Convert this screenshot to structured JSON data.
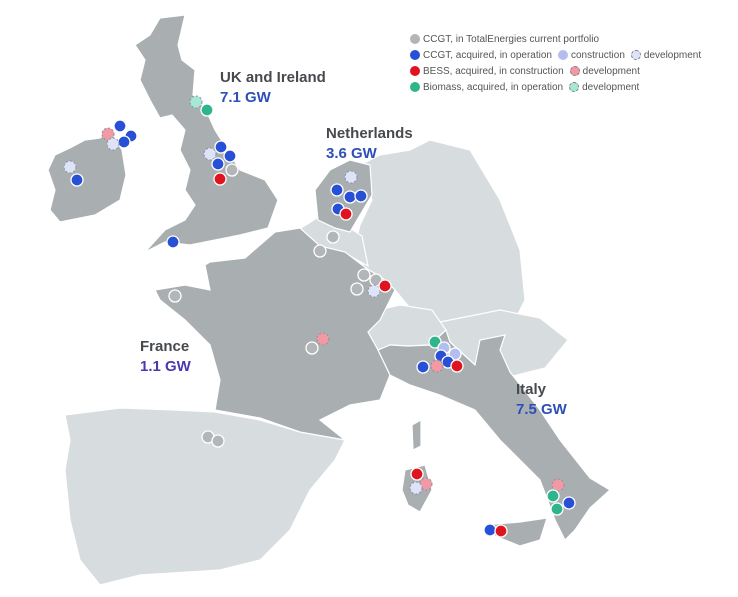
{
  "regions": {
    "uk": {
      "name": "UK and Ireland",
      "value": "7.1 GW"
    },
    "netherlands": {
      "name": "Netherlands",
      "value": "3.6 GW"
    },
    "france": {
      "name": "France",
      "value": "1.1 GW"
    },
    "italy": {
      "name": "Italy",
      "value": "7.5 GW"
    }
  },
  "legend": {
    "ccgt_portfolio": "CCGT, in TotalEnergies current portfolio",
    "ccgt_operation": "CCGT, acquired, in operation",
    "ccgt_construction": "construction",
    "ccgt_development": "development",
    "bess_construction": "BESS, acquired, in construction",
    "bess_development": "development",
    "biomass_operation": "Biomass, acquired, in operation",
    "biomass_development": "development"
  },
  "colors": {
    "ccgt_portfolio": "#b3b6b8",
    "ccgt_operation": "#2750d6",
    "ccgt_construction": "#b3bdf0",
    "ccgt_development": "#dfe3f7",
    "bess_construction": "#e0141e",
    "bess_development": "#f19aa3",
    "biomass_operation": "#2fb58b",
    "biomass_development": "#a8e8d2",
    "gw_value": "#2e4fb8",
    "country_dark": "#a9aeb1",
    "country_light": "#d7dcde"
  }
}
